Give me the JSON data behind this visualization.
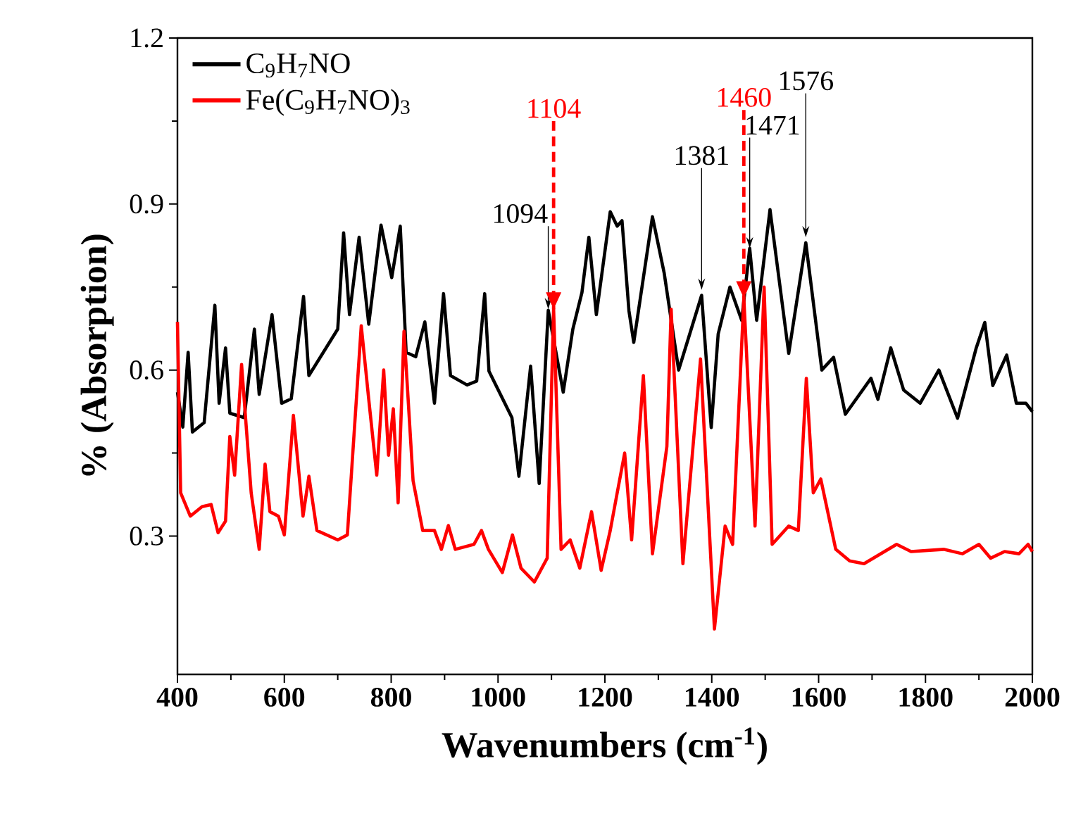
{
  "chart_data": {
    "type": "line",
    "xlabel": "Wavenumbers (cm$^{-1}$)",
    "ylabel": "% (Absorption)",
    "xlim": [
      400,
      2000
    ],
    "xticks": [
      400,
      600,
      800,
      1000,
      1200,
      1400,
      1600,
      1800,
      2000
    ],
    "ylim": [
      0.05,
      1.2
    ],
    "yticks": [
      0.3,
      0.6,
      0.9,
      1.2
    ],
    "legend": "top left",
    "series": [
      {
        "name": "C$_{9}$H$_{7}$NO",
        "color": "#000000",
        "x": [
          400,
          410,
          420,
          428,
          450,
          470,
          478,
          490,
          498,
          525,
          544,
          553,
          577,
          595,
          613,
          636,
          646,
          700,
          711,
          722,
          740,
          758,
          781,
          801,
          817,
          828,
          846,
          863,
          881,
          898,
          911,
          942,
          960,
          975,
          983,
          1026,
          1039,
          1061,
          1077,
          1094,
          1122,
          1140,
          1157,
          1170,
          1184,
          1210,
          1223,
          1232,
          1245,
          1254,
          1289,
          1311,
          1338,
          1381,
          1399,
          1412,
          1434,
          1456,
          1471,
          1484,
          1509,
          1544,
          1576,
          1606,
          1628,
          1650,
          1698,
          1711,
          1735,
          1759,
          1790,
          1825,
          1860,
          1895,
          1911,
          1926,
          1952,
          1970,
          1988,
          2000
        ],
        "values": [
          0.56,
          0.497,
          0.632,
          0.488,
          0.505,
          0.717,
          0.54,
          0.64,
          0.522,
          0.514,
          0.674,
          0.556,
          0.7,
          0.54,
          0.548,
          0.733,
          0.59,
          0.674,
          0.848,
          0.7,
          0.84,
          0.683,
          0.862,
          0.767,
          0.86,
          0.632,
          0.624,
          0.687,
          0.54,
          0.738,
          0.59,
          0.573,
          0.58,
          0.738,
          0.598,
          0.514,
          0.408,
          0.607,
          0.395,
          0.708,
          0.56,
          0.674,
          0.74,
          0.84,
          0.7,
          0.886,
          0.86,
          0.87,
          0.707,
          0.65,
          0.877,
          0.775,
          0.6,
          0.735,
          0.496,
          0.665,
          0.75,
          0.69,
          0.82,
          0.69,
          0.89,
          0.63,
          0.83,
          0.6,
          0.623,
          0.52,
          0.585,
          0.547,
          0.64,
          0.564,
          0.54,
          0.6,
          0.513,
          0.64,
          0.686,
          0.572,
          0.627,
          0.54,
          0.54,
          0.525
        ]
      },
      {
        "name": "Fe(C$_{9}$H$_{7}$NO)$_{3}$",
        "color": "#ff0000",
        "x": [
          400,
          406,
          424,
          446,
          463,
          476,
          490,
          498,
          507,
          520,
          538,
          553,
          564,
          573,
          589,
          600,
          617,
          635,
          646,
          661,
          700,
          718,
          744,
          758,
          773,
          786,
          795,
          804,
          813,
          824,
          841,
          859,
          881,
          894,
          907,
          920,
          955,
          969,
          982,
          1008,
          1027,
          1043,
          1068,
          1092,
          1104,
          1118,
          1135,
          1153,
          1175,
          1193,
          1210,
          1223,
          1237,
          1250,
          1272,
          1289,
          1316,
          1324,
          1346,
          1379,
          1405,
          1425,
          1439,
          1460,
          1481,
          1498,
          1513,
          1544,
          1562,
          1577,
          1590,
          1604,
          1632,
          1658,
          1685,
          1746,
          1773,
          1834,
          1869,
          1900,
          1922,
          1948,
          1975,
          1992,
          2000
        ],
        "values": [
          0.687,
          0.378,
          0.336,
          0.353,
          0.357,
          0.306,
          0.327,
          0.48,
          0.41,
          0.61,
          0.378,
          0.276,
          0.43,
          0.344,
          0.336,
          0.302,
          0.518,
          0.336,
          0.408,
          0.31,
          0.293,
          0.302,
          0.68,
          0.547,
          0.41,
          0.6,
          0.446,
          0.53,
          0.36,
          0.67,
          0.4,
          0.31,
          0.31,
          0.276,
          0.319,
          0.276,
          0.285,
          0.31,
          0.276,
          0.234,
          0.302,
          0.242,
          0.217,
          0.26,
          0.71,
          0.276,
          0.293,
          0.242,
          0.344,
          0.238,
          0.31,
          0.378,
          0.45,
          0.293,
          0.59,
          0.268,
          0.462,
          0.71,
          0.25,
          0.62,
          0.132,
          0.318,
          0.285,
          0.73,
          0.318,
          0.75,
          0.285,
          0.318,
          0.31,
          0.585,
          0.378,
          0.403,
          0.276,
          0.255,
          0.25,
          0.285,
          0.272,
          0.276,
          0.268,
          0.285,
          0.26,
          0.272,
          0.268,
          0.285,
          0.272
        ]
      }
    ],
    "annotations": [
      {
        "text": "1094",
        "x": 1094,
        "y": 0.71
      },
      {
        "text": "1104",
        "x": 1104,
        "y": 0.71
      },
      {
        "text": "1381",
        "x": 1381,
        "y": 0.745
      },
      {
        "text": "1460",
        "x": 1460,
        "y": 0.73
      },
      {
        "text": "1471",
        "x": 1471,
        "y": 0.82
      },
      {
        "text": "1576",
        "x": 1576,
        "y": 0.84
      }
    ]
  }
}
